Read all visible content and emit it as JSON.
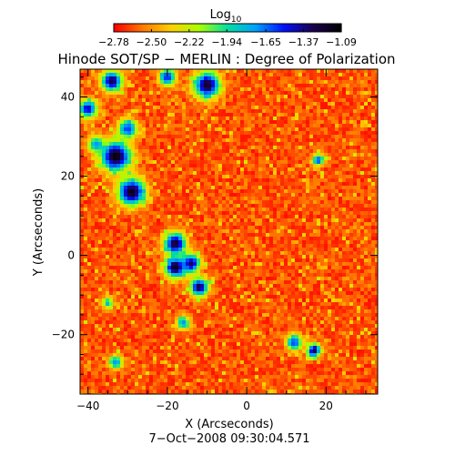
{
  "chart_data": {
    "type": "heatmap",
    "title": "Hinode SOT/SP − MERLIN : Degree of Polarization",
    "xlabel": "X (Arcseconds)",
    "ylabel": "Y (Arcseconds)",
    "timestamp": "7−Oct−2008 09:30:04.571",
    "xlim": [
      -42,
      33
    ],
    "ylim": [
      -35,
      47
    ],
    "x_ticks": [
      -40,
      -20,
      0,
      20
    ],
    "y_ticks": [
      -20,
      0,
      20,
      40
    ],
    "x_tick_labels": [
      "−40",
      "−20",
      "0",
      "20"
    ],
    "y_tick_labels": [
      "−20",
      "0",
      "20",
      "40"
    ],
    "colorbar": {
      "label_base": "Log",
      "label_sub": "10",
      "min": -2.78,
      "max": -1.09,
      "ticks": [
        -2.78,
        -2.5,
        -2.22,
        -1.94,
        -1.65,
        -1.37,
        -1.09
      ],
      "tick_labels": [
        "−2.78",
        "−2.50",
        "−2.22",
        "−1.94",
        "−1.65",
        "−1.37",
        "−1.09"
      ],
      "colors": [
        "#ff0000",
        "#ff7a00",
        "#ffd000",
        "#a8ff00",
        "#00e0a0",
        "#00a0ff",
        "#0010ff",
        "#1a0050",
        "#000000"
      ]
    },
    "background_level": -2.65,
    "features": [
      {
        "x": -34,
        "y": 44,
        "r": 1.8,
        "level": -1.25
      },
      {
        "x": -40,
        "y": 37,
        "r": 1.6,
        "level": -1.4
      },
      {
        "x": -20,
        "y": 45,
        "r": 1.5,
        "level": -1.5
      },
      {
        "x": -10,
        "y": 43,
        "r": 2.3,
        "level": -1.2
      },
      {
        "x": -33,
        "y": 25,
        "r": 2.6,
        "level": -1.1
      },
      {
        "x": -30,
        "y": 32,
        "r": 1.7,
        "level": -1.55
      },
      {
        "x": -29,
        "y": 16,
        "r": 2.4,
        "level": -1.15
      },
      {
        "x": -38,
        "y": 28,
        "r": 1.4,
        "level": -1.7
      },
      {
        "x": -18,
        "y": 3,
        "r": 1.9,
        "level": -1.2
      },
      {
        "x": -18,
        "y": -3,
        "r": 1.8,
        "level": -1.15
      },
      {
        "x": -14,
        "y": -2,
        "r": 1.6,
        "level": -1.3
      },
      {
        "x": -12,
        "y": -8,
        "r": 1.6,
        "level": -1.25
      },
      {
        "x": -16,
        "y": -17,
        "r": 1.2,
        "level": -1.7
      },
      {
        "x": 12,
        "y": -22,
        "r": 1.4,
        "level": -1.55
      },
      {
        "x": 17,
        "y": -24,
        "r": 1.2,
        "level": -1.25
      },
      {
        "x": 18,
        "y": 24,
        "r": 1.0,
        "level": -1.55
      },
      {
        "x": -33,
        "y": -27,
        "r": 1.2,
        "level": -1.7
      },
      {
        "x": -35,
        "y": -12,
        "r": 1.0,
        "level": -1.8
      }
    ]
  }
}
